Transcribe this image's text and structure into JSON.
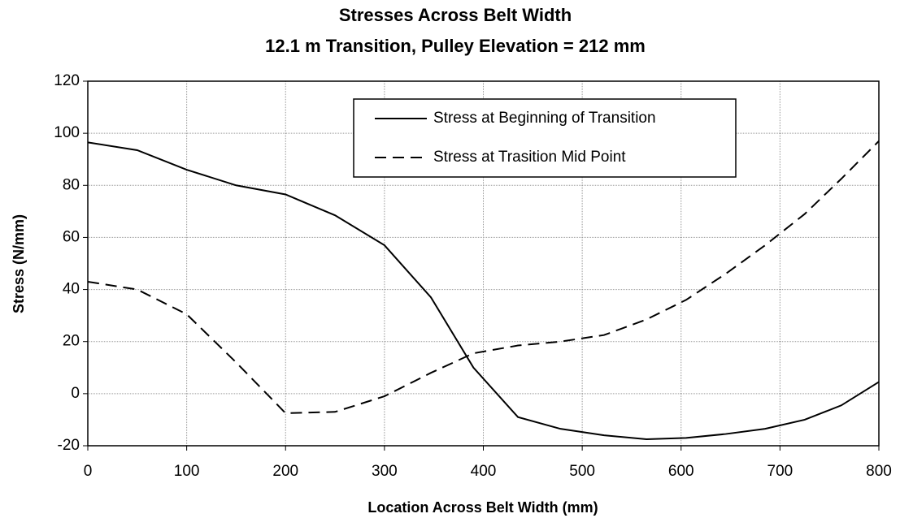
{
  "chart_data": {
    "type": "line",
    "title": "Stresses Across Belt Width",
    "subtitle": "12.1 m Transition, Pulley Elevation = 212 mm",
    "xlabel": "Location Across Belt Width (mm)",
    "ylabel": "Stress (N/mm)",
    "x": [
      0,
      50,
      100,
      150,
      200,
      250,
      300,
      347,
      390,
      435,
      478,
      522,
      565,
      605,
      645,
      685,
      725,
      762,
      800
    ],
    "series": [
      {
        "name": "Stress at Beginning of Transition",
        "color": "#000000",
        "linestyle": "solid",
        "values": [
          96.5,
          93.5,
          86,
          80,
          76.5,
          68.5,
          57,
          37,
          10,
          -9,
          -13.5,
          -16,
          -17.5,
          -17,
          -15.5,
          -13.5,
          -10,
          -4.5,
          4.5
        ]
      },
      {
        "name": "Stress at Trasition Mid Point",
        "color": "#000000",
        "linestyle": "dashed",
        "values": [
          43,
          40,
          30.5,
          12,
          -7.5,
          -7,
          -1,
          8,
          15.5,
          18.5,
          20,
          22.5,
          28.5,
          36,
          46,
          57,
          69,
          82.5,
          97
        ]
      }
    ],
    "xlim": [
      0,
      800
    ],
    "xticks": [
      0,
      100,
      200,
      300,
      400,
      500,
      600,
      700,
      800
    ],
    "ylim": [
      -20,
      120
    ],
    "yticks": [
      -20,
      0,
      20,
      40,
      60,
      80,
      100,
      120
    ],
    "grid": true,
    "legend": "upper right"
  }
}
